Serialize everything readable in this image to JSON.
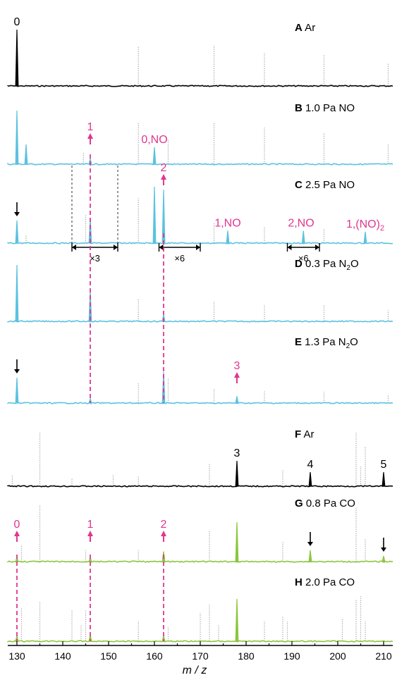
{
  "chart_data": {
    "type": "line",
    "xlabel": "m / z",
    "xlim": [
      128,
      212
    ],
    "xticks": [
      130,
      140,
      150,
      160,
      170,
      180,
      190,
      200,
      210
    ],
    "colors": {
      "black": "#000000",
      "blue": "#5bc2e0",
      "green": "#8cc63f",
      "magenta": "#e0368f",
      "gray": "#b3b3b3"
    },
    "panels": [
      {
        "letter": "A",
        "label": "Ar",
        "color": "#000000",
        "peaks": [
          {
            "x": 130,
            "h": 1.0
          }
        ],
        "gray_peaks": [
          {
            "x": 156.5,
            "h": 0.7
          },
          {
            "x": 173,
            "h": 0.72
          },
          {
            "x": 184,
            "h": 0.6
          },
          {
            "x": 197,
            "h": 0.55
          },
          {
            "x": 211,
            "h": 0.4
          }
        ],
        "labels": [
          {
            "text": "0",
            "x": 130,
            "color": "#000000"
          }
        ]
      },
      {
        "letter": "B",
        "label": "1.0 Pa NO",
        "color": "#5bc2e0",
        "peaks": [
          {
            "x": 130,
            "h": 0.95
          },
          {
            "x": 132,
            "h": 0.35
          },
          {
            "x": 146,
            "h": 0.1
          },
          {
            "x": 160,
            "h": 0.3
          }
        ],
        "gray_peaks": [
          {
            "x": 144.5,
            "h": 0.2
          },
          {
            "x": 156.5,
            "h": 0.75
          },
          {
            "x": 163,
            "h": 0.45
          },
          {
            "x": 173,
            "h": 0.75
          },
          {
            "x": 184,
            "h": 0.65
          },
          {
            "x": 197,
            "h": 0.55
          },
          {
            "x": 211,
            "h": 0.35
          }
        ],
        "labels": [
          {
            "text": "1",
            "x": 146,
            "color": "#e0368f",
            "arrow": "up"
          },
          {
            "text": "0,NO",
            "x": 160,
            "color": "#e0368f"
          }
        ]
      },
      {
        "letter": "C",
        "label": "2.5 Pa NO",
        "color": "#5bc2e0",
        "peaks": [
          {
            "x": 130,
            "h": 0.4
          },
          {
            "x": 146,
            "h": 0.45
          },
          {
            "x": 160,
            "h": 1.0
          },
          {
            "x": 162,
            "h": 0.95
          },
          {
            "x": 176,
            "h": 0.22
          },
          {
            "x": 192.5,
            "h": 0.22
          },
          {
            "x": 206,
            "h": 0.2
          }
        ],
        "gray_peaks": [
          {
            "x": 132,
            "h": 0.15
          },
          {
            "x": 145,
            "h": 0.5
          },
          {
            "x": 156.5,
            "h": 0.8
          },
          {
            "x": 173,
            "h": 0.35
          },
          {
            "x": 184,
            "h": 0.3
          },
          {
            "x": 197,
            "h": 0.25
          }
        ],
        "labels": [
          {
            "text": "2",
            "x": 162,
            "color": "#e0368f",
            "arrow": "up"
          },
          {
            "text": "1,NO",
            "x": 176,
            "color": "#e0368f"
          },
          {
            "text": "2,NO",
            "x": 192,
            "color": "#e0368f"
          },
          {
            "text": "1,(NO)",
            "sub": "2",
            "x": 206,
            "color": "#e0368f"
          }
        ],
        "black_arrow_x": 130,
        "zooms": [
          {
            "text": "×3",
            "from": 142,
            "to": 152
          },
          {
            "text": "×6",
            "from": 161,
            "to": 170
          },
          {
            "text": "×6",
            "from": 189,
            "to": 196
          }
        ]
      },
      {
        "letter": "D",
        "label": "0.3 Pa N",
        "sub": "2",
        "label_end": "O",
        "color": "#5bc2e0",
        "peaks": [
          {
            "x": 130,
            "h": 1.0
          },
          {
            "x": 146,
            "h": 0.55
          },
          {
            "x": 162,
            "h": 0.12
          }
        ],
        "gray_peaks": [
          {
            "x": 156.5,
            "h": 0.4
          },
          {
            "x": 173,
            "h": 0.35
          },
          {
            "x": 184,
            "h": 0.3
          },
          {
            "x": 197,
            "h": 0.3
          },
          {
            "x": 211,
            "h": 0.2
          }
        ],
        "labels": []
      },
      {
        "letter": "E",
        "label": "1.3 Pa N",
        "sub": "2",
        "label_end": "O",
        "color": "#5bc2e0",
        "peaks": [
          {
            "x": 130,
            "h": 0.45
          },
          {
            "x": 146,
            "h": 0.08
          },
          {
            "x": 162,
            "h": 0.55
          },
          {
            "x": 178,
            "h": 0.12
          }
        ],
        "gray_peaks": [
          {
            "x": 156.5,
            "h": 0.35
          },
          {
            "x": 163,
            "h": 0.45
          },
          {
            "x": 173,
            "h": 0.25
          },
          {
            "x": 184,
            "h": 0.22
          },
          {
            "x": 197,
            "h": 0.2
          },
          {
            "x": 211,
            "h": 0.15
          }
        ],
        "labels": [
          {
            "text": "3",
            "x": 178,
            "color": "#e0368f",
            "arrow": "up"
          }
        ],
        "black_arrow_x": 130
      },
      {
        "letter": "F",
        "label": "Ar",
        "color": "#000000",
        "peaks": [
          {
            "x": 178,
            "h": 0.45
          },
          {
            "x": 194,
            "h": 0.25
          },
          {
            "x": 210,
            "h": 0.25
          }
        ],
        "gray_peaks": [
          {
            "x": 129,
            "h": 0.2
          },
          {
            "x": 135,
            "h": 0.95
          },
          {
            "x": 142,
            "h": 0.15
          },
          {
            "x": 151,
            "h": 0.2
          },
          {
            "x": 156.5,
            "h": 0.18
          },
          {
            "x": 172,
            "h": 0.4
          },
          {
            "x": 188,
            "h": 0.3
          },
          {
            "x": 204,
            "h": 0.95
          },
          {
            "x": 206,
            "h": 0.7
          },
          {
            "x": 205,
            "h": 0.35
          }
        ],
        "labels": [
          {
            "text": "3",
            "x": 178,
            "color": "#000000"
          },
          {
            "text": "4",
            "x": 194,
            "color": "#000000"
          },
          {
            "text": "5",
            "x": 210,
            "color": "#000000"
          }
        ]
      },
      {
        "letter": "G",
        "label": "0.8 Pa CO",
        "color": "#8cc63f",
        "peaks": [
          {
            "x": 130,
            "h": 0.08
          },
          {
            "x": 146,
            "h": 0.08
          },
          {
            "x": 162,
            "h": 0.18
          },
          {
            "x": 178,
            "h": 0.7
          },
          {
            "x": 194,
            "h": 0.2
          },
          {
            "x": 210,
            "h": 0.1
          }
        ],
        "gray_peaks": [
          {
            "x": 131,
            "h": 0.3
          },
          {
            "x": 135,
            "h": 1.0
          },
          {
            "x": 145,
            "h": 0.2
          },
          {
            "x": 156.5,
            "h": 0.2
          },
          {
            "x": 172,
            "h": 0.55
          },
          {
            "x": 188,
            "h": 0.35
          },
          {
            "x": 204,
            "h": 0.95
          },
          {
            "x": 206,
            "h": 0.4
          }
        ],
        "labels": [
          {
            "text": "0",
            "x": 130,
            "color": "#e0368f",
            "arrow": "up"
          },
          {
            "text": "1",
            "x": 146,
            "color": "#e0368f",
            "arrow": "up"
          },
          {
            "text": "2",
            "x": 162,
            "color": "#e0368f",
            "arrow": "up"
          }
        ],
        "black_arrows": [
          194,
          210
        ]
      },
      {
        "letter": "H",
        "label": "2.0 Pa CO",
        "color": "#8cc63f",
        "peaks": [
          {
            "x": 130,
            "h": 0.1
          },
          {
            "x": 146,
            "h": 0.12
          },
          {
            "x": 162,
            "h": 0.1
          },
          {
            "x": 178,
            "h": 0.75
          }
        ],
        "gray_peaks": [
          {
            "x": 131,
            "h": 0.6
          },
          {
            "x": 135,
            "h": 0.7
          },
          {
            "x": 142,
            "h": 0.55
          },
          {
            "x": 144,
            "h": 0.3
          },
          {
            "x": 145,
            "h": 0.55
          },
          {
            "x": 156.5,
            "h": 0.35
          },
          {
            "x": 163,
            "h": 0.25
          },
          {
            "x": 170,
            "h": 0.5
          },
          {
            "x": 172,
            "h": 0.65
          },
          {
            "x": 174,
            "h": 0.3
          },
          {
            "x": 184,
            "h": 0.35
          },
          {
            "x": 188,
            "h": 0.45
          },
          {
            "x": 189,
            "h": 0.35
          },
          {
            "x": 201,
            "h": 0.4
          },
          {
            "x": 204,
            "h": 0.75
          },
          {
            "x": 205,
            "h": 0.8
          },
          {
            "x": 206,
            "h": 0.35
          }
        ],
        "labels": []
      }
    ]
  }
}
